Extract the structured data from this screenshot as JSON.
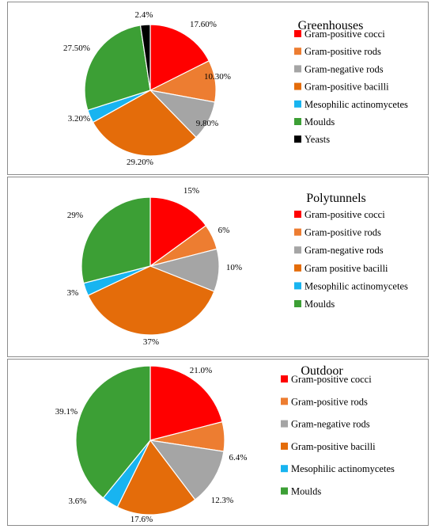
{
  "chart_data": [
    {
      "type": "pie",
      "title": "Greenhouses",
      "categories": [
        "Gram-positive cocci",
        "Gram-positive rods",
        "Gram-negative rods",
        "Gram-positive bacilli",
        "Mesophilic actinomycetes",
        "Moulds",
        "Yeasts"
      ],
      "values": [
        17.6,
        10.3,
        9.8,
        29.2,
        3.2,
        27.5,
        2.4
      ],
      "labels": [
        "17.60%",
        "10.30%",
        "9.80%",
        "29.20%",
        "3.20%",
        "27.50%",
        "2.4%"
      ],
      "colors": [
        "#ff0000",
        "#ed7d31",
        "#a5a5a5",
        "#e46c0a",
        "#18b4f0",
        "#3c9f35",
        "#000000"
      ],
      "legend_position": "right"
    },
    {
      "type": "pie",
      "title": "Polytunnels",
      "categories": [
        "Gram-positive cocci",
        "Gram-positive rods",
        "Gram-negative rods",
        "Gram positive bacilli",
        "Mesophilic actinomycetes",
        "Moulds"
      ],
      "values": [
        15,
        6,
        10,
        37,
        3,
        29
      ],
      "labels": [
        "15%",
        "6%",
        "10%",
        "37%",
        "3%",
        "29%"
      ],
      "colors": [
        "#ff0000",
        "#ed7d31",
        "#a5a5a5",
        "#e46c0a",
        "#18b4f0",
        "#3c9f35"
      ],
      "legend_position": "right"
    },
    {
      "type": "pie",
      "title": "Outdoor",
      "categories": [
        "Gram-positive cocci",
        "Gram-positive rods",
        "Gram-negative rods",
        "Gram-positive bacilli",
        "Mesophilic actinomycetes",
        "Moulds"
      ],
      "values": [
        21.0,
        6.4,
        12.3,
        17.6,
        3.6,
        39.1
      ],
      "labels": [
        "21.0%",
        "6.4%",
        "12.3%",
        "17.6%",
        "3.6%",
        "39.1%"
      ],
      "colors": [
        "#ff0000",
        "#ed7d31",
        "#a5a5a5",
        "#e46c0a",
        "#18b4f0",
        "#3c9f35"
      ],
      "legend_position": "right"
    }
  ]
}
